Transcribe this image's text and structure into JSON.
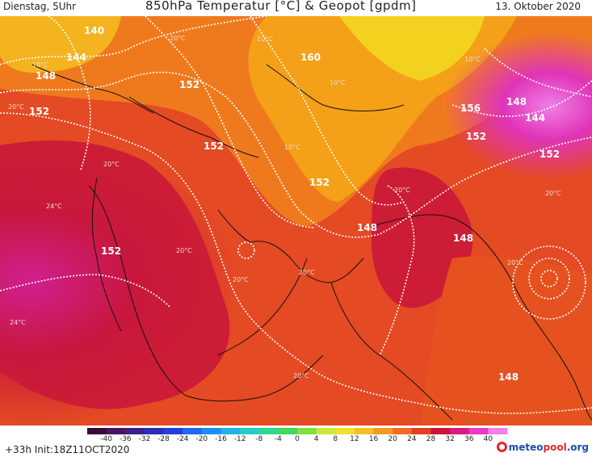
{
  "header": {
    "datetime_label": "Dienstag, 5Uhr",
    "title": "850hPa Temperatur [°C] & Geopot [gpdm]",
    "date": "13. Oktober 2020"
  },
  "map": {
    "geopotential_labels": [
      "140",
      "144",
      "148",
      "152",
      "152",
      "152",
      "152",
      "152",
      "160",
      "156",
      "148",
      "144",
      "152",
      "152",
      "148",
      "148",
      "148"
    ],
    "temperature_labels": [
      "10°C",
      "10°C",
      "10°C",
      "10°C",
      "20°C",
      "24°C",
      "20°C",
      "20°C",
      "20°C",
      "20°C",
      "24°C",
      "20°C",
      "20°C",
      "20°C",
      "20°C",
      "20°C",
      "10°C"
    ]
  },
  "colorbar": {
    "ticks": [
      "-40",
      "-36",
      "-32",
      "-28",
      "-24",
      "-20",
      "-16",
      "-12",
      "-8",
      "-4",
      "0",
      "4",
      "8",
      "12",
      "16",
      "20",
      "24",
      "28",
      "32",
      "36",
      "40"
    ],
    "colors": [
      "#3b0a38",
      "#4a1460",
      "#3a1f8a",
      "#2a2fb0",
      "#2340d8",
      "#1f68f0",
      "#1b90f0",
      "#20b4e6",
      "#23cfc4",
      "#2fd890",
      "#3fd858",
      "#7fe040",
      "#c9e83a",
      "#f0e030",
      "#f4c028",
      "#f29a24",
      "#ef6c22",
      "#e23e24",
      "#cc1438",
      "#d81a84",
      "#ea3ac8",
      "#f07fe6"
    ]
  },
  "footer": {
    "init_label": "+33h  Init:18Z11OCT2020",
    "logo_a": "meteo",
    "logo_b": "pool",
    "logo_c": ".org"
  }
}
